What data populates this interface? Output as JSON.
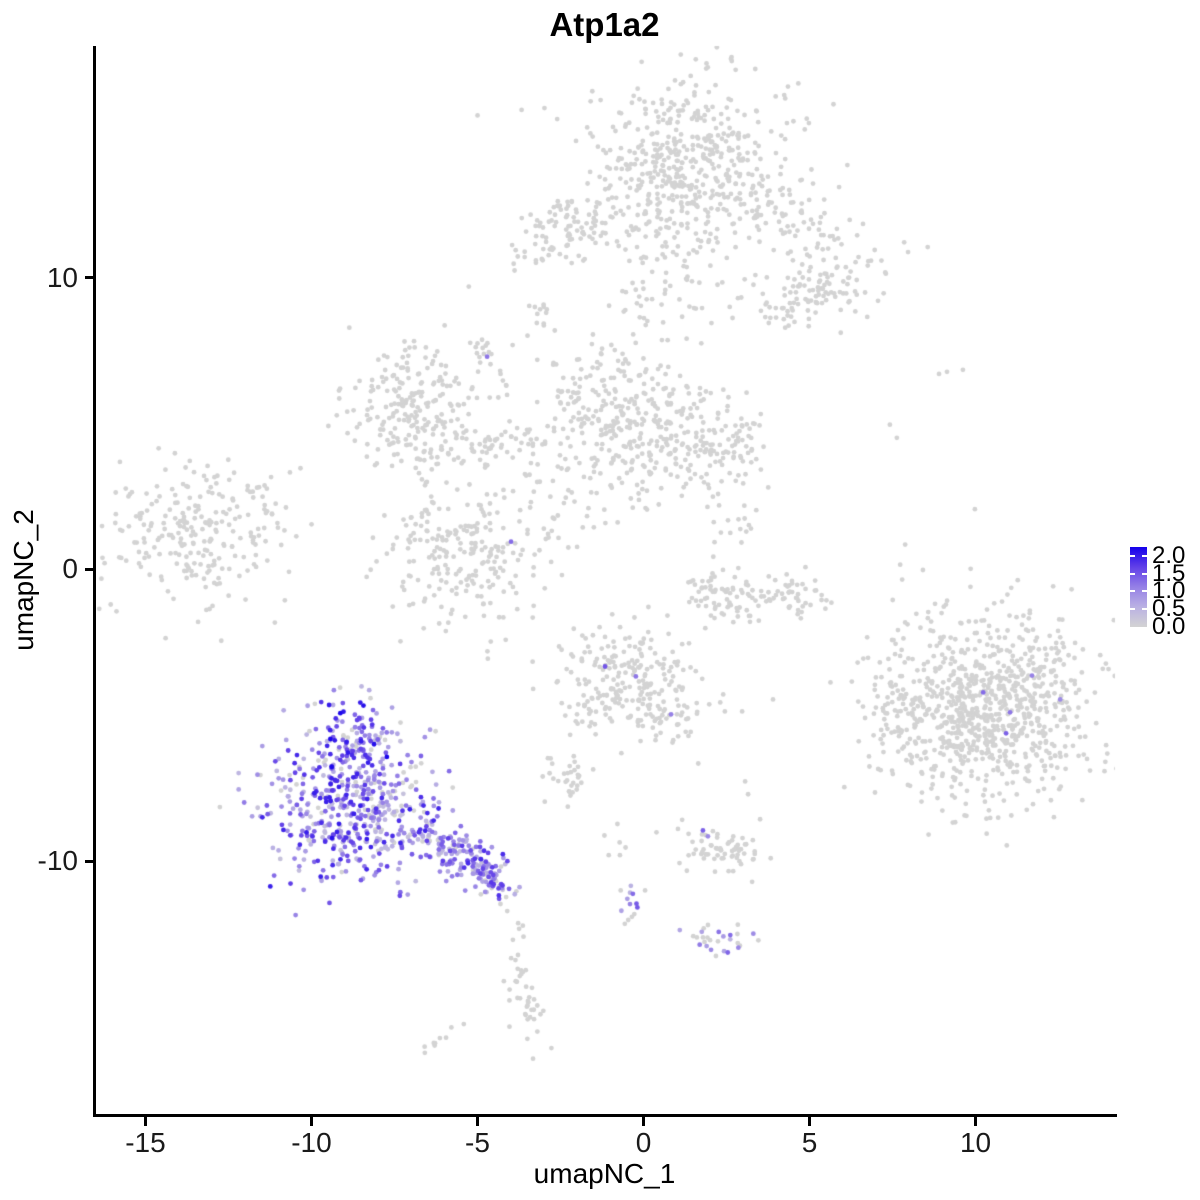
{
  "chart_data": {
    "type": "scatter",
    "title": "Atp1a2",
    "xlabel": "umapNC_1",
    "ylabel": "umapNC_2",
    "xlim": [
      -16.55,
      14.2
    ],
    "ylim": [
      -18.67,
      17.94
    ],
    "xticks": {
      "values": [
        -15,
        -10,
        -5,
        0,
        5,
        10
      ],
      "labels": [
        "-15",
        "-10",
        "-5",
        "0",
        "5",
        "10"
      ]
    },
    "yticks": {
      "values": [
        -10,
        0,
        10
      ],
      "labels": [
        "-10",
        "0",
        "10"
      ]
    },
    "grid": false,
    "legend": {
      "position": "right",
      "bar_max": 2.25,
      "tick_values": [
        0.5,
        1.0,
        1.5,
        2.0
      ],
      "labels": [
        {
          "value": 2.0,
          "text": "2.0"
        },
        {
          "value": 1.5,
          "text": "1.5"
        },
        {
          "value": 1.0,
          "text": "1.0"
        },
        {
          "value": 0.5,
          "text": "0.5"
        },
        {
          "value": 0.0,
          "text": "0.0"
        }
      ]
    },
    "colors": {
      "low": "#D3D3D3",
      "high": "#1400EB",
      "stops": [
        {
          "t": 0.0,
          "c": "#D3D3D3"
        },
        {
          "t": 0.25,
          "c": "#BAB1E3"
        },
        {
          "t": 0.5,
          "c": "#9580E6"
        },
        {
          "t": 0.75,
          "c": "#6140E8"
        },
        {
          "t": 1.0,
          "c": "#1400EB"
        }
      ]
    },
    "point_radius": 2.4,
    "seed": 1337,
    "clusters": [
      {
        "name": "top-main-blob",
        "cx": 1.34,
        "cy": 14.21,
        "sx": 1.51,
        "sy": 1.37,
        "n": 400,
        "p0": 1
      },
      {
        "name": "top-lower-stem",
        "cx": 0.74,
        "cy": 11.57,
        "sx": 0.9,
        "sy": 1.54,
        "n": 140,
        "p0": 1
      },
      {
        "name": "top-right-arm",
        "cx": 4.41,
        "cy": 11.91,
        "sx": 1.66,
        "sy": 0.68,
        "n": 130,
        "p0": 1,
        "rot": 28
      },
      {
        "name": "top-right-knob",
        "cx": 5.56,
        "cy": 9.62,
        "sx": 0.55,
        "sy": 0.5,
        "n": 45,
        "p0": 1
      },
      {
        "name": "top-right-lower-blob",
        "cx": 4.41,
        "cy": 9.03,
        "sx": 0.7,
        "sy": 0.5,
        "n": 55,
        "p0": 1
      },
      {
        "name": "upper-left-cluster",
        "cx": -2.36,
        "cy": 11.64,
        "sx": 1.0,
        "sy": 0.55,
        "n": 90,
        "p0": 1,
        "rot": -20
      },
      {
        "name": "upper-left-hook",
        "cx": -2.58,
        "cy": 12.42,
        "sx": 0.3,
        "sy": 0.25,
        "n": 12,
        "p0": 1
      },
      {
        "name": "mid-upper-streak",
        "cx": -2.97,
        "cy": 8.73,
        "sx": 0.18,
        "sy": 0.4,
        "n": 12,
        "p0": 1,
        "rot": -35
      },
      {
        "name": "small-clump-west",
        "cx": -4.74,
        "cy": 7.36,
        "sx": 0.28,
        "sy": 0.38,
        "n": 16,
        "p0": 1
      },
      {
        "name": "top-stem-chain",
        "cx": 0.05,
        "cy": 8.14,
        "sx": 0.22,
        "sy": 0.85,
        "n": 10,
        "p0": 1
      },
      {
        "name": "west-trail",
        "cx": -4.17,
        "cy": 5.82,
        "sx": 0.15,
        "sy": 0.7,
        "n": 7,
        "p0": 1
      },
      {
        "name": "mid-blob-A",
        "cx": -6.97,
        "cy": 5.54,
        "sx": 0.92,
        "sy": 1.05,
        "n": 220,
        "p0": 1
      },
      {
        "name": "mid-arm-AB",
        "cx": -4.68,
        "cy": 4.38,
        "sx": 1.3,
        "sy": 0.4,
        "n": 65,
        "p0": 1,
        "rot": -10
      },
      {
        "name": "mid-blob-B",
        "cx": -0.77,
        "cy": 5.13,
        "sx": 1.2,
        "sy": 1.4,
        "n": 280,
        "p0": 1
      },
      {
        "name": "mid-blob-C",
        "cx": 1.7,
        "cy": 4.24,
        "sx": 1.1,
        "sy": 0.95,
        "n": 170,
        "p0": 1
      },
      {
        "name": "mid-blob-D",
        "cx": -5.38,
        "cy": 0.4,
        "sx": 1.4,
        "sy": 1.25,
        "n": 230,
        "p0": 1
      },
      {
        "name": "mid-sparse-fill",
        "cx": -2.97,
        "cy": 2.56,
        "sx": 1.1,
        "sy": 1.3,
        "n": 38,
        "p0": 1
      },
      {
        "name": "far-left-cluster",
        "cx": -13.48,
        "cy": 1.16,
        "sx": 1.45,
        "sy": 1.25,
        "n": 250,
        "p0": 1
      },
      {
        "name": "crescent-left-tip",
        "cx": 2.18,
        "cy": -0.55,
        "sx": 0.42,
        "sy": 0.38,
        "n": 32,
        "p0": 1
      },
      {
        "name": "crescent-mid",
        "cx": 3.36,
        "cy": -1.03,
        "sx": 0.8,
        "sy": 0.4,
        "n": 60,
        "p0": 1
      },
      {
        "name": "crescent-right",
        "cx": 4.59,
        "cy": -0.73,
        "sx": 0.5,
        "sy": 0.35,
        "n": 32,
        "p0": 1
      },
      {
        "name": "crescent-upper-spray",
        "cx": 2.76,
        "cy": 1.47,
        "sx": 0.32,
        "sy": 0.7,
        "n": 13,
        "p0": 1
      },
      {
        "name": "right-big-cluster",
        "cx": 10.29,
        "cy": -4.66,
        "sx": 1.62,
        "sy": 1.6,
        "n": 880,
        "p0": 1
      },
      {
        "name": "right-cluster-arm",
        "cx": 7.61,
        "cy": -5.01,
        "sx": 0.5,
        "sy": 0.7,
        "n": 45,
        "p0": 1
      },
      {
        "name": "center-bottom-blob",
        "cx": -0.56,
        "cy": -3.77,
        "sx": 1.0,
        "sy": 1.0,
        "n": 225,
        "p0": 1
      },
      {
        "name": "center-bottom-arm-se",
        "cx": 0.68,
        "cy": -5.04,
        "sx": 0.45,
        "sy": 0.38,
        "n": 28,
        "p0": 1
      },
      {
        "name": "center-bottom-arm-sw",
        "cx": -1.7,
        "cy": -5.25,
        "sx": 0.28,
        "sy": 0.5,
        "n": 12,
        "p0": 1
      },
      {
        "name": "small-blob-southcenter",
        "cx": -2.3,
        "cy": -7.1,
        "sx": 0.33,
        "sy": 0.42,
        "n": 32,
        "p0": 1
      },
      {
        "name": "purple-upper-lobe",
        "cx": -8.63,
        "cy": -5.83,
        "sx": 0.8,
        "sy": 0.72,
        "n": 130,
        "p0": 0.1,
        "vmin": 0.4,
        "vmax": 2.2
      },
      {
        "name": "purple-main-body",
        "cx": -8.78,
        "cy": -8.29,
        "sx": 1.3,
        "sy": 1.15,
        "n": 460,
        "p0": 0.12,
        "vmin": 0.25,
        "vmax": 2.0
      },
      {
        "name": "purple-tail-1",
        "cx": -6.22,
        "cy": -9.29,
        "sx": 0.5,
        "sy": 0.4,
        "n": 65,
        "p0": 0.15,
        "vmin": 0.3,
        "vmax": 1.9,
        "rot": 33
      },
      {
        "name": "purple-tail-2",
        "cx": -5.35,
        "cy": -9.87,
        "sx": 0.5,
        "sy": 0.4,
        "n": 65,
        "p0": 0.15,
        "vmin": 0.3,
        "vmax": 1.9,
        "rot": 33
      },
      {
        "name": "purple-tail-3",
        "cx": -4.56,
        "cy": -10.49,
        "sx": 0.45,
        "sy": 0.38,
        "n": 55,
        "p0": 0.15,
        "vmin": 0.3,
        "vmax": 1.9,
        "rot": 33
      },
      {
        "name": "below-tail-trail",
        "cx": -4.05,
        "cy": -12.16,
        "sx": 0.13,
        "sy": 0.75,
        "n": 6,
        "p0": 1
      },
      {
        "name": "bottom-grey-streak",
        "cx": -3.6,
        "cy": -14.56,
        "sx": 0.22,
        "sy": 0.9,
        "n": 42,
        "p0": 1,
        "rot": -12
      },
      {
        "name": "bottom-grey-dash",
        "cx": -6.13,
        "cy": -16.17,
        "sx": 0.3,
        "sy": 0.1,
        "n": 9,
        "p0": 1,
        "rot": -35
      },
      {
        "name": "south-cluster-grey",
        "cx": 2.27,
        "cy": -9.63,
        "sx": 0.8,
        "sy": 0.38,
        "n": 68,
        "p0": 1,
        "rot": 8
      },
      {
        "name": "south-purple-streak",
        "cx": -0.32,
        "cy": -11.55,
        "sx": 0.18,
        "sy": 0.55,
        "n": 14,
        "p0": 0.45,
        "vmin": 0.5,
        "vmax": 1.6,
        "rot": -8
      },
      {
        "name": "south-streak-lead-in",
        "cx": -0.83,
        "cy": -9.6,
        "sx": 0.15,
        "sy": 0.45,
        "n": 6,
        "p0": 1
      },
      {
        "name": "south-mixed-cluster",
        "cx": 2.24,
        "cy": -12.68,
        "sx": 0.48,
        "sy": 0.3,
        "n": 28,
        "p0": 0.55,
        "vmin": 0.5,
        "vmax": 1.5
      }
    ],
    "extra_points": [
      {
        "x": -4.71,
        "y": 7.29,
        "v": 1.2
      },
      {
        "x": -3.99,
        "y": 0.95,
        "v": 1.3
      },
      {
        "x": 1.79,
        "y": -8.95,
        "v": 1.4
      },
      {
        "x": 1.94,
        "y": -9.15,
        "v": 1.0
      },
      {
        "x": -1.16,
        "y": -3.33,
        "v": 1.5
      },
      {
        "x": -0.23,
        "y": -3.67,
        "v": 1.2
      },
      {
        "x": 0.83,
        "y": -4.97,
        "v": 1.1
      },
      {
        "x": 11.7,
        "y": -3.64,
        "v": 1.1
      },
      {
        "x": 10.23,
        "y": -4.22,
        "v": 1.3
      },
      {
        "x": 12.55,
        "y": -4.46,
        "v": 1.0
      },
      {
        "x": 11.04,
        "y": -4.9,
        "v": 1.2
      },
      {
        "x": 10.92,
        "y": -5.62,
        "v": 1.4
      },
      {
        "x": -7.73,
        "y": -6.43,
        "v": 2.2
      },
      {
        "x": -9.47,
        "y": -4.65,
        "v": 2.0
      },
      {
        "x": -9.38,
        "y": -9.21,
        "v": 2.1
      },
      {
        "x": 7.42,
        "y": 4.96,
        "v": 0
      },
      {
        "x": 7.63,
        "y": 4.51,
        "v": 0
      },
      {
        "x": 9.14,
        "y": 6.77,
        "v": 0
      },
      {
        "x": 8.9,
        "y": 6.7,
        "v": 0
      },
      {
        "x": 9.62,
        "y": 6.84,
        "v": 0
      },
      {
        "x": 7.88,
        "y": 0.85,
        "v": 0
      },
      {
        "x": 7.73,
        "y": 0.16,
        "v": 0
      },
      {
        "x": 7.79,
        "y": -0.35,
        "v": 0
      },
      {
        "x": 7.88,
        "y": -1.82,
        "v": 0
      },
      {
        "x": -11.76,
        "y": 0.92,
        "v": 0
      },
      {
        "x": -11.64,
        "y": 2.8,
        "v": 0
      },
      {
        "x": -12.24,
        "y": 2.15,
        "v": 0
      },
      {
        "x": -11.01,
        "y": 1.43,
        "v": 0
      },
      {
        "x": 2.45,
        "y": -4.87,
        "v": 0
      },
      {
        "x": 2.97,
        "y": -4.87,
        "v": 0
      },
      {
        "x": 3.06,
        "y": -7.27,
        "v": 0
      },
      {
        "x": 3.15,
        "y": -7.71,
        "v": 0
      },
      {
        "x": 3.9,
        "y": -4.46,
        "v": 0
      }
    ]
  }
}
